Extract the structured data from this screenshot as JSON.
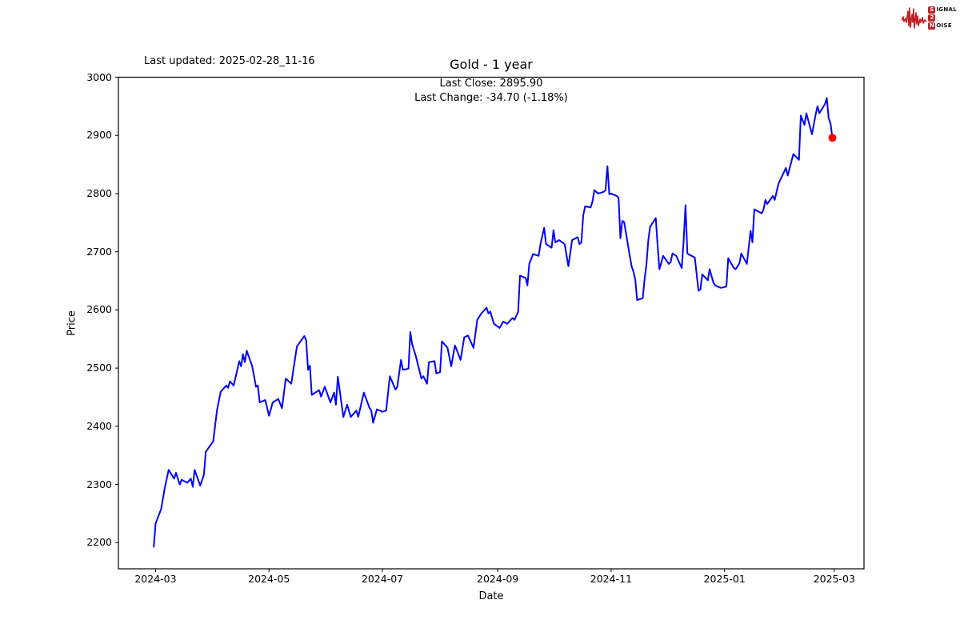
{
  "header": {
    "last_updated": "Last updated: 2025-02-28_11-16",
    "logo": {
      "color": "#c12026",
      "line1_badge": "S",
      "line1_text": "IGNAL",
      "line2_badge": "2",
      "line2_text": "",
      "line3_badge": "N",
      "line3_text": "OISE"
    }
  },
  "chart_data": {
    "type": "line",
    "title": "Gold - 1 year",
    "subtitle_line1": "Last Close: 2895.90",
    "subtitle_line2": "Last Change: -34.70 (-1.18%)",
    "last_close": 2895.9,
    "last_change": -34.7,
    "last_change_pct": "-1.18%",
    "xlabel": "Date",
    "ylabel": "Price",
    "grid": false,
    "legend": "none",
    "line_color": "#0000ff",
    "marker_color": "#ff0000",
    "ylim": [
      2155,
      3000
    ],
    "x_domain": [
      "2024-02-10",
      "2025-03-17"
    ],
    "yticks": [
      2200,
      2300,
      2400,
      2500,
      2600,
      2700,
      2800,
      2900,
      3000
    ],
    "xticks": [
      {
        "label": "2024-03",
        "date": "2024-03-01"
      },
      {
        "label": "2024-05",
        "date": "2024-05-01"
      },
      {
        "label": "2024-07",
        "date": "2024-07-01"
      },
      {
        "label": "2024-09",
        "date": "2024-09-01"
      },
      {
        "label": "2024-11",
        "date": "2024-11-01"
      },
      {
        "label": "2025-01",
        "date": "2025-01-01"
      },
      {
        "label": "2025-03",
        "date": "2025-03-01"
      }
    ],
    "series": [
      {
        "name": "Gold",
        "points": [
          [
            "2024-02-29",
            2193
          ],
          [
            "2024-03-01",
            2233
          ],
          [
            "2024-03-04",
            2258
          ],
          [
            "2024-03-06",
            2295
          ],
          [
            "2024-03-08",
            2325
          ],
          [
            "2024-03-11",
            2310
          ],
          [
            "2024-03-12",
            2320
          ],
          [
            "2024-03-14",
            2300
          ],
          [
            "2024-03-15",
            2308
          ],
          [
            "2024-03-18",
            2303
          ],
          [
            "2024-03-20",
            2310
          ],
          [
            "2024-03-21",
            2296
          ],
          [
            "2024-03-22",
            2325
          ],
          [
            "2024-03-25",
            2298
          ],
          [
            "2024-03-27",
            2317
          ],
          [
            "2024-03-28",
            2356
          ],
          [
            "2024-04-01",
            2374
          ],
          [
            "2024-04-03",
            2427
          ],
          [
            "2024-04-05",
            2459
          ],
          [
            "2024-04-08",
            2470
          ],
          [
            "2024-04-09",
            2466
          ],
          [
            "2024-04-10",
            2477
          ],
          [
            "2024-04-12",
            2470
          ],
          [
            "2024-04-15",
            2512
          ],
          [
            "2024-04-16",
            2503
          ],
          [
            "2024-04-17",
            2524
          ],
          [
            "2024-04-18",
            2510
          ],
          [
            "2024-04-19",
            2530
          ],
          [
            "2024-04-22",
            2503
          ],
          [
            "2024-04-24",
            2468
          ],
          [
            "2024-04-25",
            2470
          ],
          [
            "2024-04-26",
            2441
          ],
          [
            "2024-04-29",
            2445
          ],
          [
            "2024-05-01",
            2418
          ],
          [
            "2024-05-03",
            2441
          ],
          [
            "2024-05-06",
            2447
          ],
          [
            "2024-05-08",
            2431
          ],
          [
            "2024-05-10",
            2482
          ],
          [
            "2024-05-13",
            2473
          ],
          [
            "2024-05-16",
            2537
          ],
          [
            "2024-05-20",
            2555
          ],
          [
            "2024-05-21",
            2548
          ],
          [
            "2024-05-22",
            2497
          ],
          [
            "2024-05-23",
            2504
          ],
          [
            "2024-05-24",
            2454
          ],
          [
            "2024-05-28",
            2462
          ],
          [
            "2024-05-29",
            2451
          ],
          [
            "2024-05-31",
            2468
          ],
          [
            "2024-06-03",
            2441
          ],
          [
            "2024-06-05",
            2458
          ],
          [
            "2024-06-06",
            2437
          ],
          [
            "2024-06-07",
            2485
          ],
          [
            "2024-06-10",
            2416
          ],
          [
            "2024-06-12",
            2437
          ],
          [
            "2024-06-14",
            2416
          ],
          [
            "2024-06-17",
            2427
          ],
          [
            "2024-06-18",
            2416
          ],
          [
            "2024-06-21",
            2458
          ],
          [
            "2024-06-24",
            2432
          ],
          [
            "2024-06-25",
            2427
          ],
          [
            "2024-06-26",
            2406
          ],
          [
            "2024-06-28",
            2429
          ],
          [
            "2024-07-01",
            2425
          ],
          [
            "2024-07-03",
            2427
          ],
          [
            "2024-07-05",
            2486
          ],
          [
            "2024-07-08",
            2463
          ],
          [
            "2024-07-09",
            2468
          ],
          [
            "2024-07-11",
            2514
          ],
          [
            "2024-07-12",
            2497
          ],
          [
            "2024-07-15",
            2499
          ],
          [
            "2024-07-16",
            2562
          ],
          [
            "2024-07-17",
            2541
          ],
          [
            "2024-07-19",
            2520
          ],
          [
            "2024-07-22",
            2482
          ],
          [
            "2024-07-23",
            2486
          ],
          [
            "2024-07-25",
            2473
          ],
          [
            "2024-07-26",
            2510
          ],
          [
            "2024-07-29",
            2512
          ],
          [
            "2024-07-30",
            2491
          ],
          [
            "2024-08-01",
            2493
          ],
          [
            "2024-08-02",
            2546
          ],
          [
            "2024-08-05",
            2535
          ],
          [
            "2024-08-07",
            2503
          ],
          [
            "2024-08-09",
            2539
          ],
          [
            "2024-08-12",
            2514
          ],
          [
            "2024-08-14",
            2553
          ],
          [
            "2024-08-16",
            2556
          ],
          [
            "2024-08-19",
            2535
          ],
          [
            "2024-08-21",
            2583
          ],
          [
            "2024-08-23",
            2593
          ],
          [
            "2024-08-26",
            2604
          ],
          [
            "2024-08-27",
            2594
          ],
          [
            "2024-08-28",
            2597
          ],
          [
            "2024-08-30",
            2576
          ],
          [
            "2024-09-02",
            2569
          ],
          [
            "2024-09-04",
            2580
          ],
          [
            "2024-09-06",
            2576
          ],
          [
            "2024-09-09",
            2586
          ],
          [
            "2024-09-10",
            2583
          ],
          [
            "2024-09-12",
            2597
          ],
          [
            "2024-09-13",
            2659
          ],
          [
            "2024-09-16",
            2655
          ],
          [
            "2024-09-17",
            2642
          ],
          [
            "2024-09-18",
            2679
          ],
          [
            "2024-09-20",
            2696
          ],
          [
            "2024-09-23",
            2693
          ],
          [
            "2024-09-24",
            2713
          ],
          [
            "2024-09-26",
            2741
          ],
          [
            "2024-09-27",
            2713
          ],
          [
            "2024-09-30",
            2707
          ],
          [
            "2024-10-01",
            2737
          ],
          [
            "2024-10-02",
            2716
          ],
          [
            "2024-10-04",
            2720
          ],
          [
            "2024-10-07",
            2713
          ],
          [
            "2024-10-09",
            2675
          ],
          [
            "2024-10-11",
            2720
          ],
          [
            "2024-10-14",
            2725
          ],
          [
            "2024-10-15",
            2713
          ],
          [
            "2024-10-16",
            2716
          ],
          [
            "2024-10-17",
            2762
          ],
          [
            "2024-10-18",
            2778
          ],
          [
            "2024-10-21",
            2776
          ],
          [
            "2024-10-22",
            2787
          ],
          [
            "2024-10-23",
            2806
          ],
          [
            "2024-10-24",
            2803
          ],
          [
            "2024-10-25",
            2800
          ],
          [
            "2024-10-28",
            2803
          ],
          [
            "2024-10-29",
            2806
          ],
          [
            "2024-10-30",
            2847
          ],
          [
            "2024-10-31",
            2799
          ],
          [
            "2024-11-01",
            2800
          ],
          [
            "2024-11-04",
            2796
          ],
          [
            "2024-11-05",
            2793
          ],
          [
            "2024-11-06",
            2723
          ],
          [
            "2024-11-07",
            2753
          ],
          [
            "2024-11-08",
            2751
          ],
          [
            "2024-11-11",
            2693
          ],
          [
            "2024-11-12",
            2675
          ],
          [
            "2024-11-13",
            2666
          ],
          [
            "2024-11-14",
            2652
          ],
          [
            "2024-11-15",
            2617
          ],
          [
            "2024-11-18",
            2620
          ],
          [
            "2024-11-19",
            2652
          ],
          [
            "2024-11-20",
            2679
          ],
          [
            "2024-11-21",
            2720
          ],
          [
            "2024-11-22",
            2743
          ],
          [
            "2024-11-25",
            2758
          ],
          [
            "2024-11-26",
            2711
          ],
          [
            "2024-11-27",
            2670
          ],
          [
            "2024-11-29",
            2693
          ],
          [
            "2024-12-02",
            2679
          ],
          [
            "2024-12-03",
            2682
          ],
          [
            "2024-12-04",
            2697
          ],
          [
            "2024-12-06",
            2693
          ],
          [
            "2024-12-09",
            2672
          ],
          [
            "2024-12-10",
            2720
          ],
          [
            "2024-12-11",
            2780
          ],
          [
            "2024-12-12",
            2697
          ],
          [
            "2024-12-13",
            2695
          ],
          [
            "2024-12-16",
            2690
          ],
          [
            "2024-12-18",
            2633
          ],
          [
            "2024-12-19",
            2635
          ],
          [
            "2024-12-20",
            2661
          ],
          [
            "2024-12-23",
            2651
          ],
          [
            "2024-12-24",
            2670
          ],
          [
            "2024-12-26",
            2647
          ],
          [
            "2024-12-27",
            2642
          ],
          [
            "2024-12-30",
            2638
          ],
          [
            "2025-01-02",
            2640
          ],
          [
            "2025-01-03",
            2689
          ],
          [
            "2025-01-06",
            2672
          ],
          [
            "2025-01-07",
            2670
          ],
          [
            "2025-01-09",
            2680
          ],
          [
            "2025-01-10",
            2697
          ],
          [
            "2025-01-13",
            2679
          ],
          [
            "2025-01-15",
            2736
          ],
          [
            "2025-01-16",
            2716
          ],
          [
            "2025-01-17",
            2773
          ],
          [
            "2025-01-21",
            2766
          ],
          [
            "2025-01-22",
            2773
          ],
          [
            "2025-01-23",
            2789
          ],
          [
            "2025-01-24",
            2782
          ],
          [
            "2025-01-27",
            2796
          ],
          [
            "2025-01-28",
            2789
          ],
          [
            "2025-01-30",
            2817
          ],
          [
            "2025-02-03",
            2844
          ],
          [
            "2025-02-04",
            2831
          ],
          [
            "2025-02-07",
            2868
          ],
          [
            "2025-02-10",
            2858
          ],
          [
            "2025-02-11",
            2934
          ],
          [
            "2025-02-13",
            2918
          ],
          [
            "2025-02-14",
            2938
          ],
          [
            "2025-02-17",
            2902
          ],
          [
            "2025-02-19",
            2936
          ],
          [
            "2025-02-20",
            2950
          ],
          [
            "2025-02-21",
            2938
          ],
          [
            "2025-02-24",
            2954
          ],
          [
            "2025-02-25",
            2964
          ],
          [
            "2025-02-26",
            2930
          ],
          [
            "2025-02-27",
            2920
          ],
          [
            "2025-02-28",
            2895.9
          ]
        ]
      }
    ]
  }
}
